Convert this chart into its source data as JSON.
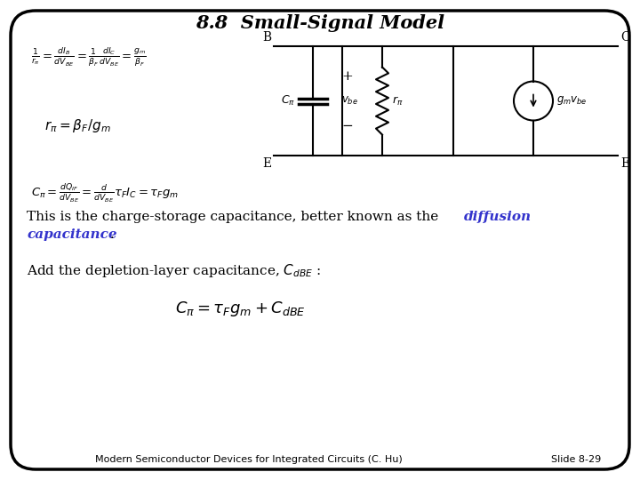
{
  "title": "8.8  Small-Signal Model",
  "background_color": "#ffffff",
  "border_color": "#000000",
  "text_color": "#000000",
  "blue_color": "#3333cc",
  "footer_text": "Modern Semiconductor Devices for Integrated Circuits (C. Hu)",
  "slide_number": "Slide 8-29"
}
